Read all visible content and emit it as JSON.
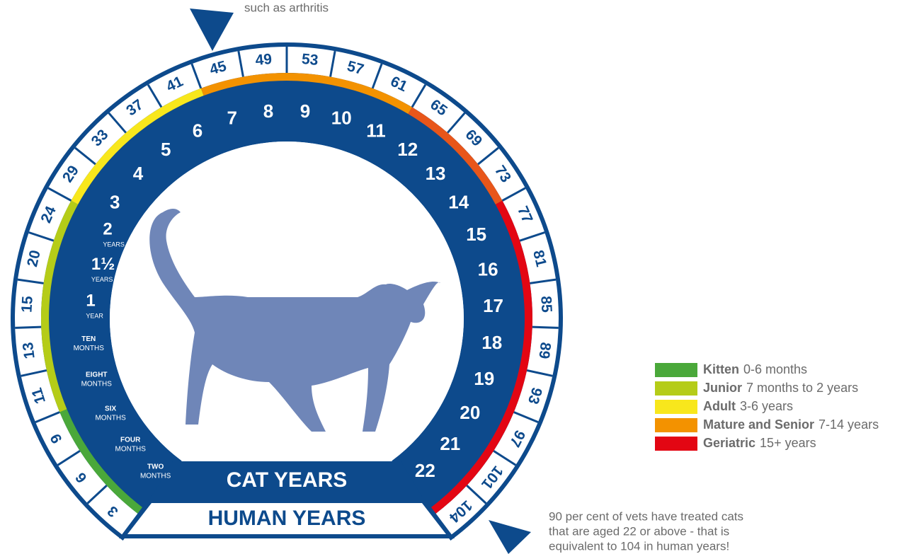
{
  "annotations": {
    "top": "such as arthritis",
    "bottom": [
      "90 per cent of vets have treated cats",
      "that are aged 22 or above - that is",
      "equivalent to 104 in human years!"
    ]
  },
  "dial": {
    "cat_label": "CAT YEARS",
    "human_label": "HUMAN YEARS",
    "human_years": [
      3,
      6,
      9,
      11,
      13,
      15,
      20,
      24,
      29,
      33,
      37,
      41,
      45,
      49,
      53,
      57,
      61,
      65,
      69,
      73,
      77,
      81,
      85,
      89,
      93,
      97,
      101,
      104
    ],
    "cat_years": [
      {
        "value": "TWO",
        "unit": "MONTHS"
      },
      {
        "value": "FOUR",
        "unit": "MONTHS"
      },
      {
        "value": "SIX",
        "unit": "MONTHS"
      },
      {
        "value": "EIGHT",
        "unit": "MONTHS"
      },
      {
        "value": "TEN",
        "unit": "MONTHS"
      },
      {
        "value": "1",
        "unit": "YEAR"
      },
      {
        "value": "1½",
        "unit": "YEARS"
      },
      {
        "value": "2",
        "unit": "YEARS"
      },
      {
        "value": "3"
      },
      {
        "value": "4"
      },
      {
        "value": "5"
      },
      {
        "value": "6"
      },
      {
        "value": "7"
      },
      {
        "value": "8"
      },
      {
        "value": "9"
      },
      {
        "value": "10"
      },
      {
        "value": "11"
      },
      {
        "value": "12"
      },
      {
        "value": "13"
      },
      {
        "value": "14"
      },
      {
        "value": "15"
      },
      {
        "value": "16"
      },
      {
        "value": "17"
      },
      {
        "value": "18"
      },
      {
        "value": "19"
      },
      {
        "value": "20"
      },
      {
        "value": "21"
      },
      {
        "value": "22"
      }
    ]
  },
  "legend": [
    {
      "name": "Kitten",
      "range": "0-6 months",
      "color": "#4aa83a"
    },
    {
      "name": "Junior",
      "range": "7 months to 2 years",
      "color": "#b5cc18"
    },
    {
      "name": "Adult",
      "range": "3-6 years",
      "color": "#f8e71c"
    },
    {
      "name": "Mature and Senior",
      "range": "7-14 years",
      "color": "#f39200"
    },
    {
      "name": "Geriatric",
      "range": "15+ years",
      "color": "#e30613"
    }
  ]
}
